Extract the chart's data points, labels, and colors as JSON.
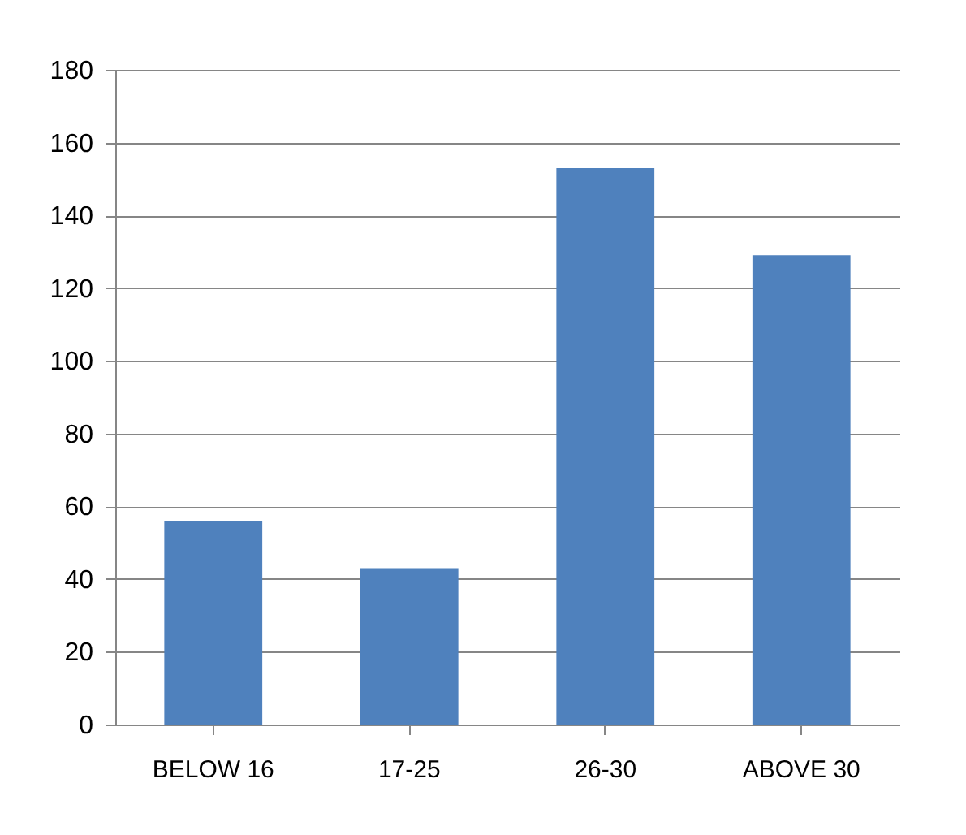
{
  "chart_data": {
    "type": "bar",
    "categories": [
      "BELOW 16",
      "17-25",
      "26-30",
      "ABOVE 30"
    ],
    "values": [
      56,
      43,
      153,
      129
    ],
    "color": "#4f81bd",
    "ylim": [
      0,
      180
    ],
    "yticks": [
      0,
      20,
      40,
      60,
      80,
      100,
      120,
      140,
      160,
      180
    ],
    "grid": "y"
  }
}
